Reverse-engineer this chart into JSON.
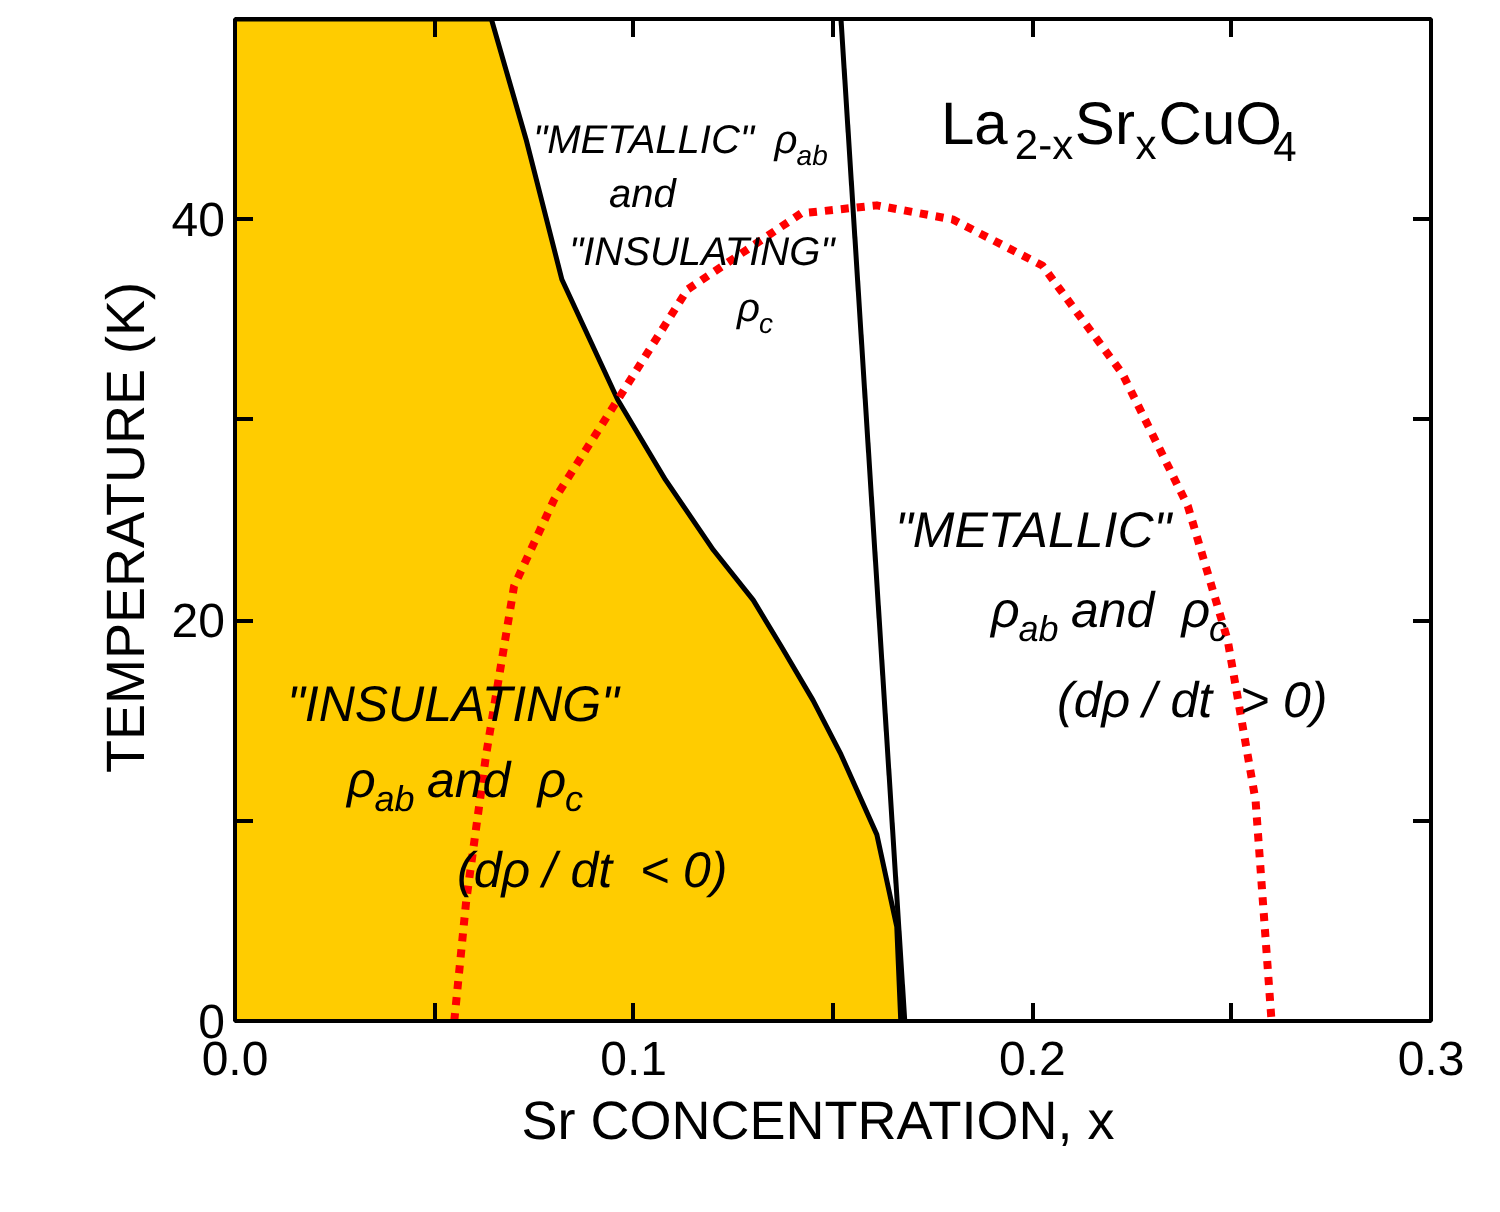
{
  "chart_data": {
    "type": "line",
    "title": "La$_{2-x}$Sr$_{x}$CuO$_{4}$",
    "xlabel": "Sr  CONCENTRATION,  x",
    "ylabel": "TEMPERATURE  (K)",
    "xlim": [
      0,
      0.3
    ],
    "ylim": [
      0,
      50
    ],
    "xticks": [
      {
        "value": 0,
        "label": "0.0"
      },
      {
        "value": 0.05,
        "label": null
      },
      0.1,
      {
        "value": 0.15,
        "label": null
      },
      0.2,
      {
        "value": 0.25,
        "label": null
      },
      0.3
    ],
    "yticks": [
      0,
      {
        "value": 10,
        "label": null
      },
      20,
      {
        "value": 30,
        "label": null
      },
      40,
      {
        "value": 50,
        "label": null
      }
    ],
    "grid": false,
    "series": [
      {
        "type": "area",
        "color": "#ffcc00",
        "x": [
          0,
          0.0643,
          0.073,
          0.082,
          0.096,
          0.108,
          0.12,
          0.13,
          0.137,
          0.145,
          0.152,
          0.161,
          0.166,
          0.167
        ],
        "values": [
          50,
          50,
          44,
          37,
          31,
          27,
          23.5,
          21,
          18.7,
          16,
          13.3,
          9.3,
          4.7,
          0
        ]
      },
      {
        "color": "#000000",
        "line_style": "solid",
        "x": [
          0.152,
          0.168
        ],
        "values": [
          50,
          0
        ]
      },
      {
        "color": "#ff0000",
        "line_style": "dotted",
        "x": [
          0.055,
          0.058,
          0.063,
          0.07,
          0.08,
          0.096,
          0.1135,
          0.142,
          0.161,
          0.18,
          0.2025,
          0.2226,
          0.239,
          0.249,
          0.256,
          0.26
        ],
        "values": [
          0,
          6,
          13.3,
          21.7,
          26,
          31,
          36.5,
          40.3,
          40.7,
          40,
          37.7,
          32.3,
          25.7,
          19,
          11,
          0
        ]
      }
    ],
    "annotations": [
      "\"METALLIC\" ρ$_{ab}$\nand\n\"INSULATING\"\nρ$_{c}$",
      "\"INSULATING\"\nρ$_{ab}$ and  ρ$_{c}$\n(dρ / dt  < 0)",
      "\"METALLIC\"\nρ$_{ab}$ and  ρ$_{c}$\n(dρ / dt  > 0)"
    ]
  }
}
